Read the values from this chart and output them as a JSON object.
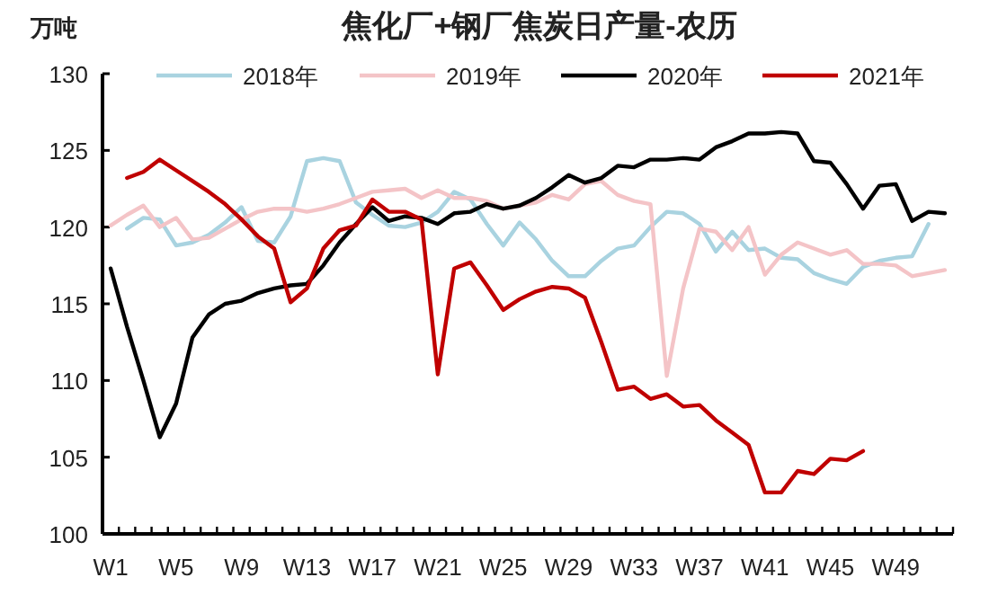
{
  "chart_data": {
    "type": "line",
    "title": "焦化厂+钢厂焦炭日产量-农历",
    "ylabel": "万吨",
    "categories": [
      "W1",
      null,
      null,
      null,
      "W5",
      null,
      null,
      null,
      "W9",
      null,
      null,
      null,
      "W13",
      null,
      null,
      null,
      "W17",
      null,
      null,
      null,
      "W21",
      null,
      null,
      null,
      "W25",
      null,
      null,
      null,
      "W29",
      null,
      null,
      null,
      "W33",
      null,
      null,
      null,
      "W37",
      null,
      null,
      null,
      "W41",
      null,
      null,
      null,
      "W45",
      null,
      null,
      null,
      "W49",
      null,
      null,
      null
    ],
    "ylim": [
      100,
      130
    ],
    "yticks": [
      100,
      105,
      110,
      115,
      120,
      125,
      130
    ],
    "legend": "top",
    "grid": false,
    "marker": "none",
    "line_style": "solid",
    "series": [
      {
        "name": "2018年",
        "color": "#a9d3e0",
        "values": [
          null,
          119.9,
          120.6,
          120.5,
          118.8,
          119,
          119.5,
          120.3,
          121.3,
          119.1,
          119,
          120.7,
          124.3,
          124.5,
          124.3,
          121.6,
          120.8,
          120.1,
          120,
          120.3,
          121,
          122.3,
          121.8,
          120.2,
          118.8,
          120.3,
          119.2,
          117.8,
          116.8,
          116.8,
          117.8,
          118.6,
          118.8,
          120,
          121,
          120.9,
          120.2,
          118.4,
          119.7,
          118.5,
          118.6,
          118,
          117.9,
          117,
          116.6,
          116.3,
          117.4,
          117.8,
          118,
          118.1,
          120.2,
          null
        ]
      },
      {
        "name": "2019年",
        "color": "#f4c4c7",
        "values": [
          120.1,
          120.8,
          121.4,
          120,
          120.6,
          119.2,
          119.3,
          119.9,
          120.5,
          121,
          121.2,
          121.2,
          121,
          121.2,
          121.5,
          121.9,
          122.3,
          122.4,
          122.5,
          121.9,
          122.4,
          121.9,
          121.9,
          121.7,
          121.2,
          121.4,
          121.6,
          122.1,
          121.8,
          122.8,
          123,
          122.1,
          121.7,
          121.5,
          110.3,
          116,
          119.9,
          119.7,
          118.5,
          120,
          116.9,
          118.2,
          119,
          118.6,
          118.2,
          118.5,
          117.6,
          117.6,
          117.5,
          116.8,
          117,
          117.2
        ]
      },
      {
        "name": "2020年",
        "color": "#000000",
        "values": [
          117.3,
          113.5,
          110,
          106.3,
          108.5,
          112.8,
          114.3,
          115,
          115.2,
          115.7,
          116,
          116.2,
          116.3,
          117.5,
          119,
          120.2,
          121.3,
          120.4,
          120.7,
          120.6,
          120.2,
          120.9,
          121,
          121.5,
          121.2,
          121.4,
          121.9,
          122.6,
          123.4,
          122.9,
          123.2,
          124,
          123.9,
          124.4,
          124.4,
          124.5,
          124.4,
          125.2,
          125.6,
          126.1,
          126.1,
          126.2,
          126.1,
          124.3,
          124.2,
          122.8,
          121.2,
          122.7,
          122.8,
          120.4,
          121,
          120.9
        ]
      },
      {
        "name": "2021年",
        "color": "#c00000",
        "values": [
          null,
          123.2,
          123.6,
          124.4,
          123.7,
          123,
          122.3,
          121.5,
          120.5,
          119.4,
          118.6,
          115.1,
          116,
          118.6,
          119.8,
          120.1,
          121.8,
          121,
          121,
          120.5,
          110.4,
          117.3,
          117.7,
          116.2,
          114.6,
          115.3,
          115.8,
          116.1,
          116,
          115.4,
          112.5,
          109.4,
          109.6,
          108.8,
          109.1,
          108.3,
          108.4,
          107.4,
          106.6,
          105.8,
          102.7,
          102.7,
          104.1,
          103.9,
          104.9,
          104.8,
          105.4,
          null,
          null,
          null,
          null,
          null
        ]
      }
    ]
  }
}
